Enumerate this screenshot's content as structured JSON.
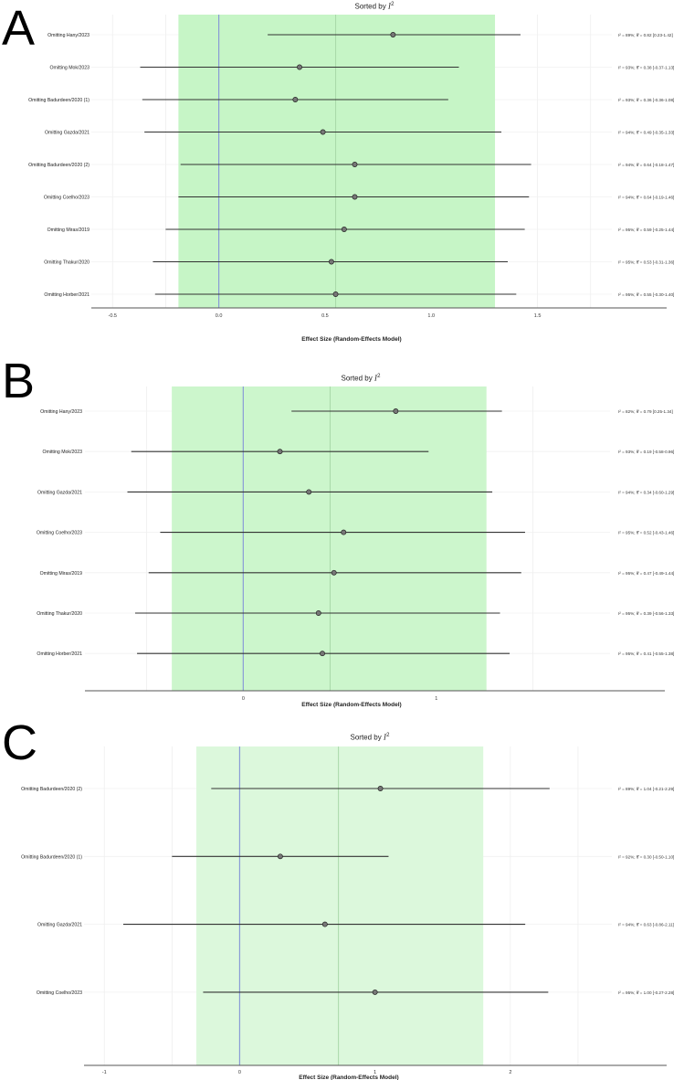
{
  "chart_data": [
    {
      "type": "forest",
      "panel_label": "A",
      "title_prefix": "Sorted by",
      "title_stat": "I",
      "title_sup": "2",
      "xlabel": "Effect Size (Random-Effects Model)",
      "xlim": [
        -0.6,
        1.85
      ],
      "xticks": [
        -0.5,
        0,
        0.5,
        1,
        1.5
      ],
      "xtick_labels": [
        "-0.5",
        "0.0",
        "0.5",
        "1.0",
        "1.5"
      ],
      "shaded_range": [
        -0.19,
        1.3
      ],
      "ci_line": 0.55,
      "rows": [
        {
          "label": "Omitting Hany/2023",
          "estimate": 0.82,
          "lower": 0.23,
          "upper": 1.42,
          "annotation": "I² = 89%; θ̂ = 0.82 [0.23-1.42]"
        },
        {
          "label": "Omitting Mok/2023",
          "estimate": 0.38,
          "lower": -0.37,
          "upper": 1.13,
          "annotation": "I² = 93%; θ̂ = 0.38 [-0.37-1.13]"
        },
        {
          "label": "Omitting Badurdeen/2020 (1)",
          "estimate": 0.36,
          "lower": -0.36,
          "upper": 1.08,
          "annotation": "I² = 93%; θ̂ = 0.36 [-0.36-1.08]"
        },
        {
          "label": "Omitting Gazda/2021",
          "estimate": 0.49,
          "lower": -0.35,
          "upper": 1.33,
          "annotation": "I² = 94%; θ̂ = 0.49 [-0.35-1.33]"
        },
        {
          "label": "Omitting Badurdeen/2020 (2)",
          "estimate": 0.64,
          "lower": -0.18,
          "upper": 1.47,
          "annotation": "I² = 94%; θ̂ = 0.64 [-0.18-1.47]"
        },
        {
          "label": "Omitting Coelho/2023",
          "estimate": 0.64,
          "lower": -0.19,
          "upper": 1.46,
          "annotation": "I² = 94%; θ̂ = 0.64 [-0.19-1.46]"
        },
        {
          "label": "Omitting Miras/2019",
          "estimate": 0.59,
          "lower": -0.25,
          "upper": 1.44,
          "annotation": "I² = 95%; θ̂ = 0.59 [-0.25-1.44]"
        },
        {
          "label": "Omitting Thakur/2020",
          "estimate": 0.53,
          "lower": -0.31,
          "upper": 1.36,
          "annotation": "I² = 95%; θ̂ = 0.53 [-0.31-1.36]"
        },
        {
          "label": "Omitting Horber/2021",
          "estimate": 0.55,
          "lower": -0.3,
          "upper": 1.4,
          "annotation": "I² = 95%; θ̂ = 0.55 [-0.30-1.40]"
        }
      ]
    },
    {
      "type": "forest",
      "panel_label": "B",
      "title_prefix": "Sorted by",
      "title_stat": "I",
      "title_sup": "2",
      "xlabel": "Effect Size (Random-Effects Model)",
      "xlim": [
        -0.82,
        1.9
      ],
      "xticks": [
        0,
        1
      ],
      "xtick_labels": [
        "0",
        "1"
      ],
      "shaded_range": [
        -0.37,
        1.26
      ],
      "ci_line": 0.45,
      "rows": [
        {
          "label": "Omitting Hany/2023",
          "estimate": 0.79,
          "lower": 0.25,
          "upper": 1.34,
          "annotation": "I² = 82%; θ̂ = 0.79 [0.25-1.34]"
        },
        {
          "label": "Omitting Mok/2023",
          "estimate": 0.19,
          "lower": -0.58,
          "upper": 0.96,
          "annotation": "I² = 93%; θ̂ = 0.19 [-0.58-0.96]"
        },
        {
          "label": "Omitting Gazda/2021",
          "estimate": 0.34,
          "lower": -0.6,
          "upper": 1.29,
          "annotation": "I² = 94%; θ̂ = 0.34 [-0.60-1.29]"
        },
        {
          "label": "Omitting Coelho/2023",
          "estimate": 0.52,
          "lower": -0.43,
          "upper": 1.46,
          "annotation": "I² = 95%; θ̂ = 0.52 [-0.43-1.46]"
        },
        {
          "label": "Omitting Miras/2019",
          "estimate": 0.47,
          "lower": -0.49,
          "upper": 1.44,
          "annotation": "I² = 95%; θ̂ = 0.47 [-0.49-1.44]"
        },
        {
          "label": "Omitting Thakur/2020",
          "estimate": 0.39,
          "lower": -0.56,
          "upper": 1.33,
          "annotation": "I² = 95%; θ̂ = 0.39 [-0.56-1.33]"
        },
        {
          "label": "Omitting Horber/2021",
          "estimate": 0.41,
          "lower": -0.55,
          "upper": 1.38,
          "annotation": "I² = 95%; θ̂ = 0.41 [-0.55-1.38]"
        }
      ]
    },
    {
      "type": "forest",
      "panel_label": "C",
      "title_prefix": "Sorted by",
      "title_stat": "I",
      "title_sup": "2",
      "xlabel": "Effect Size (Random-Effects Model)",
      "xlim": [
        -1.15,
        2.75
      ],
      "xticks": [
        -1,
        0,
        1,
        2
      ],
      "xtick_labels": [
        "-1",
        "0",
        "1",
        "2"
      ],
      "shaded_range": [
        -0.32,
        1.8
      ],
      "ci_line": 0.73,
      "rows": [
        {
          "label": "Omitting Badurdeen/2020 (2)",
          "estimate": 1.04,
          "lower": -0.21,
          "upper": 2.29,
          "annotation": "I² = 89%; θ̂ = 1.04 [-0.21-2.29]"
        },
        {
          "label": "Omitting Badurdeen/2020 (1)",
          "estimate": 0.3,
          "lower": -0.5,
          "upper": 1.1,
          "annotation": "I² = 92%; θ̂ = 0.30 [-0.50-1.10]"
        },
        {
          "label": "Omitting Gazda/2021",
          "estimate": 0.63,
          "lower": -0.86,
          "upper": 2.11,
          "annotation": "I² = 94%; θ̂ = 0.63 [-0.86-2.11]"
        },
        {
          "label": "Omitting Coelho/2023",
          "estimate": 1.0,
          "lower": -0.27,
          "upper": 2.28,
          "annotation": "I² = 95%; θ̂ = 1.00 [-0.27-2.28]"
        }
      ]
    }
  ]
}
